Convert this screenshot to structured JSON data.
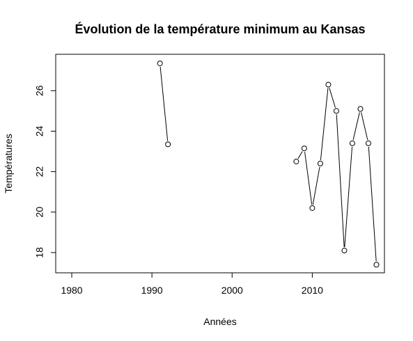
{
  "chart_data": {
    "type": "line",
    "title": "Évolution de la température minimum au Kansas",
    "xlabel": "Années",
    "ylabel": "Températures",
    "xlim": [
      1978,
      2019
    ],
    "ylim": [
      17.0,
      27.8
    ],
    "x_ticks": [
      1980,
      1990,
      2000,
      2010
    ],
    "y_ticks": [
      18,
      20,
      22,
      24,
      26
    ],
    "grid": false,
    "legend": "none",
    "points_style": "open-circles",
    "series": [
      {
        "segments": [
          [
            {
              "x": 1991,
              "y": 27.35
            },
            {
              "x": 1992,
              "y": 23.35
            }
          ],
          [
            {
              "x": 2008,
              "y": 22.5
            },
            {
              "x": 2009,
              "y": 23.15
            },
            {
              "x": 2010,
              "y": 20.2
            },
            {
              "x": 2011,
              "y": 22.4
            },
            {
              "x": 2012,
              "y": 26.3
            },
            {
              "x": 2013,
              "y": 25.0
            },
            {
              "x": 2014,
              "y": 18.1
            },
            {
              "x": 2015,
              "y": 23.4
            },
            {
              "x": 2016,
              "y": 25.1
            },
            {
              "x": 2017,
              "y": 23.4
            },
            {
              "x": 2018,
              "y": 17.4
            }
          ]
        ]
      }
    ]
  }
}
